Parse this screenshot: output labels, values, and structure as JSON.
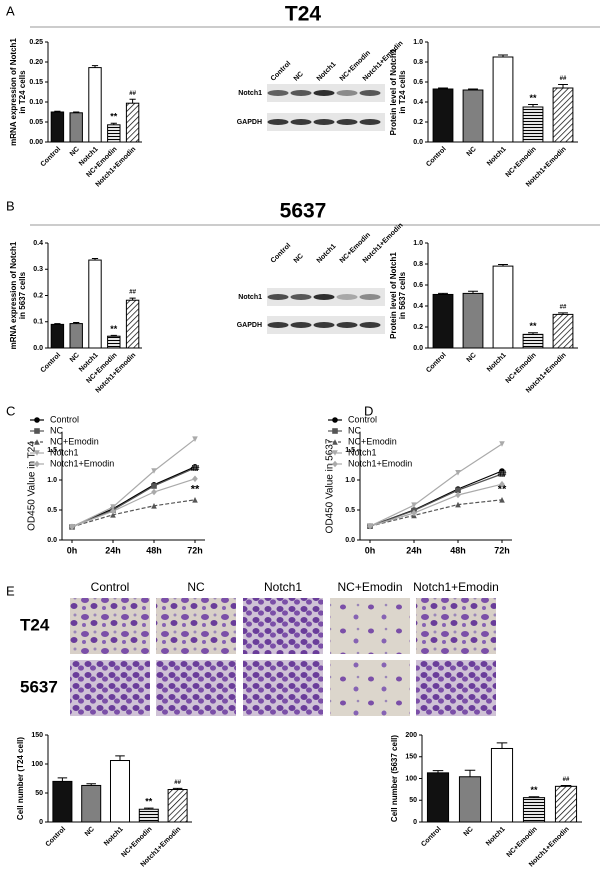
{
  "panels": [
    "A",
    "B",
    "C",
    "D",
    "E"
  ],
  "titles": [
    "T24",
    "5637"
  ],
  "blots": [
    {
      "lanes": [
        "Control",
        "NC",
        "Notch1",
        "NC+Emodin",
        "Notch1+Emodin"
      ],
      "rows": [
        "Notch1",
        "GAPDH"
      ]
    },
    {
      "lanes": [
        "Control",
        "NC",
        "Notch1",
        "NC+Emodin",
        "Notch1+Emodin"
      ],
      "rows": [
        "Notch1",
        "GAPDH"
      ]
    }
  ],
  "micrographs": {
    "columns": [
      "Control",
      "NC",
      "Notch1",
      "NC+Emodin",
      "Notch1+Emodin"
    ],
    "rows": [
      "T24",
      "5637"
    ]
  },
  "chart_data": [
    {
      "type": "bar",
      "ylabel": [
        "mRNA expression of Notch1",
        "in T24 cells"
      ],
      "categories": [
        "Control",
        "NC",
        "Notch1",
        "NC+Emodin",
        "Notch1+Emodin"
      ],
      "values": [
        0.075,
        0.073,
        0.186,
        0.043,
        0.097
      ],
      "errors": [
        0.002,
        0.002,
        0.005,
        0.004,
        0.01
      ],
      "annotations": [
        null,
        null,
        null,
        "**",
        "##"
      ],
      "fills": [
        "#111111",
        "#808080",
        "#ffffff",
        "stripes",
        "hatch"
      ],
      "ylim": [
        0,
        0.25
      ],
      "yticks": [
        {
          "value": 0,
          "label": "0.00"
        },
        0.05,
        {
          "value": 0.1,
          "label": "0.10"
        },
        0.15,
        {
          "value": 0.2,
          "label": "0.20"
        },
        0.25
      ]
    },
    {
      "type": "bar",
      "ylabel": [
        "Protein level of Notch1",
        "in T24 cells"
      ],
      "categories": [
        "Control",
        "NC",
        "Notch1",
        "NC+Emodin",
        "Notch1+Emodin"
      ],
      "values": [
        0.53,
        0.52,
        0.85,
        0.35,
        0.54
      ],
      "errors": [
        0.01,
        0.01,
        0.02,
        0.025,
        0.035
      ],
      "annotations": [
        null,
        null,
        null,
        "**",
        "##"
      ],
      "fills": [
        "#111111",
        "#808080",
        "#ffffff",
        "stripes",
        "hatch"
      ],
      "ylim": [
        0,
        1
      ],
      "yticks": [
        {
          "value": 0,
          "label": "0.0"
        },
        0.2,
        0.4,
        0.6,
        0.8,
        {
          "value": 1,
          "label": "1.0"
        }
      ]
    },
    {
      "type": "bar",
      "ylabel": [
        "mRNA expression of Notch1",
        "in 5637 cells"
      ],
      "categories": [
        "Control",
        "NC",
        "Notch1",
        "NC+Emodin",
        "Notch1+Emodin"
      ],
      "values": [
        0.09,
        0.093,
        0.335,
        0.045,
        0.182
      ],
      "errors": [
        0.003,
        0.004,
        0.006,
        0.003,
        0.008
      ],
      "annotations": [
        null,
        null,
        null,
        "**",
        "##"
      ],
      "fills": [
        "#111111",
        "#808080",
        "#ffffff",
        "stripes",
        "hatch"
      ],
      "ylim": [
        0,
        0.4
      ],
      "yticks": [
        {
          "value": 0,
          "label": "0.0"
        },
        0.1,
        0.2,
        0.3,
        0.4
      ]
    },
    {
      "type": "bar",
      "ylabel": [
        "Protein level of Notch1",
        "in 5637 cells"
      ],
      "categories": [
        "Control",
        "NC",
        "Notch1",
        "NC+Emodin",
        "Notch1+Emodin"
      ],
      "values": [
        0.51,
        0.52,
        0.78,
        0.13,
        0.32
      ],
      "errors": [
        0.01,
        0.02,
        0.015,
        0.015,
        0.015
      ],
      "annotations": [
        null,
        null,
        null,
        "**",
        "##"
      ],
      "fills": [
        "#111111",
        "#808080",
        "#ffffff",
        "stripes",
        "hatch"
      ],
      "ylim": [
        0,
        1
      ],
      "yticks": [
        {
          "value": 0,
          "label": "0.0"
        },
        0.2,
        0.4,
        0.6,
        0.8,
        {
          "value": 1,
          "label": "1.0"
        }
      ]
    },
    {
      "type": "line",
      "ylabel": "OD450 Value in T24",
      "categories": [
        "0h",
        "24h",
        "48h",
        "72h"
      ],
      "series": [
        {
          "name": "Control",
          "color": "#000000",
          "marker": "circle",
          "values": [
            0.22,
            0.52,
            0.92,
            1.22
          ]
        },
        {
          "name": "NC",
          "color": "#555555",
          "marker": "square",
          "values": [
            0.22,
            0.5,
            0.9,
            1.2
          ]
        },
        {
          "name": "NC+Emodin",
          "color": "#555555",
          "marker": "triangle",
          "dashed": true,
          "end_label": "**",
          "values": [
            0.22,
            0.42,
            0.57,
            0.67
          ]
        },
        {
          "name": "Notch1",
          "color": "#aaaaaa",
          "marker": "triangle-down",
          "values": [
            0.22,
            0.55,
            1.15,
            1.68
          ]
        },
        {
          "name": "Notch1+Emodin",
          "color": "#aaaaaa",
          "marker": "diamond",
          "end_label": "##",
          "values": [
            0.22,
            0.48,
            0.8,
            1.02
          ]
        }
      ],
      "ylim": [
        0,
        1.8
      ],
      "yticks": [
        {
          "value": 0,
          "label": "0.0"
        },
        0.5,
        {
          "value": 1,
          "label": "1.0"
        },
        1.5
      ],
      "legend": "top-left"
    },
    {
      "type": "line",
      "ylabel": "OD450 Value in 5637",
      "categories": [
        "0h",
        "24h",
        "48h",
        "72h"
      ],
      "series": [
        {
          "name": "Control",
          "color": "#000000",
          "marker": "circle",
          "values": [
            0.23,
            0.5,
            0.85,
            1.15
          ]
        },
        {
          "name": "NC",
          "color": "#555555",
          "marker": "square",
          "values": [
            0.23,
            0.49,
            0.83,
            1.1
          ]
        },
        {
          "name": "NC+Emodin",
          "color": "#555555",
          "marker": "triangle",
          "dashed": true,
          "end_label": "**",
          "values": [
            0.23,
            0.41,
            0.59,
            0.67
          ]
        },
        {
          "name": "Notch1",
          "color": "#aaaaaa",
          "marker": "triangle-down",
          "values": [
            0.23,
            0.58,
            1.12,
            1.6
          ]
        },
        {
          "name": "Notch1+Emodin",
          "color": "#aaaaaa",
          "marker": "diamond",
          "end_label": "##",
          "values": [
            0.23,
            0.45,
            0.75,
            0.93
          ]
        }
      ],
      "ylim": [
        0,
        1.8
      ],
      "yticks": [
        {
          "value": 0,
          "label": "0.0"
        },
        0.5,
        {
          "value": 1,
          "label": "1.0"
        },
        1.5
      ],
      "legend": "top-left"
    },
    {
      "type": "bar",
      "ylabel": [
        "Cell number (T24 cell)"
      ],
      "categories": [
        "Control",
        "NC",
        "Notch1",
        "NC+Emodin",
        "Notch1+Emodin"
      ],
      "values": [
        70,
        63,
        106,
        22,
        56
      ],
      "errors": [
        6,
        3,
        8,
        2,
        2
      ],
      "annotations": [
        null,
        null,
        null,
        "**",
        "##"
      ],
      "fills": [
        "#111111",
        "#808080",
        "#ffffff",
        "stripes",
        "hatch"
      ],
      "ylim": [
        0,
        150
      ],
      "yticks": [
        0,
        50,
        100,
        150
      ]
    },
    {
      "type": "bar",
      "ylabel": [
        "Cell number (5637 cell)"
      ],
      "categories": [
        "Control",
        "NC",
        "Notch1",
        "NC+Emodin",
        "Notch1+Emodin"
      ],
      "values": [
        113,
        104,
        169,
        56,
        82
      ],
      "errors": [
        5,
        15,
        13,
        2,
        2
      ],
      "annotations": [
        null,
        null,
        null,
        "**",
        "##"
      ],
      "fills": [
        "#111111",
        "#808080",
        "#ffffff",
        "stripes",
        "hatch"
      ],
      "ylim": [
        0,
        200
      ],
      "yticks": [
        0,
        50,
        100,
        150,
        200
      ]
    }
  ]
}
